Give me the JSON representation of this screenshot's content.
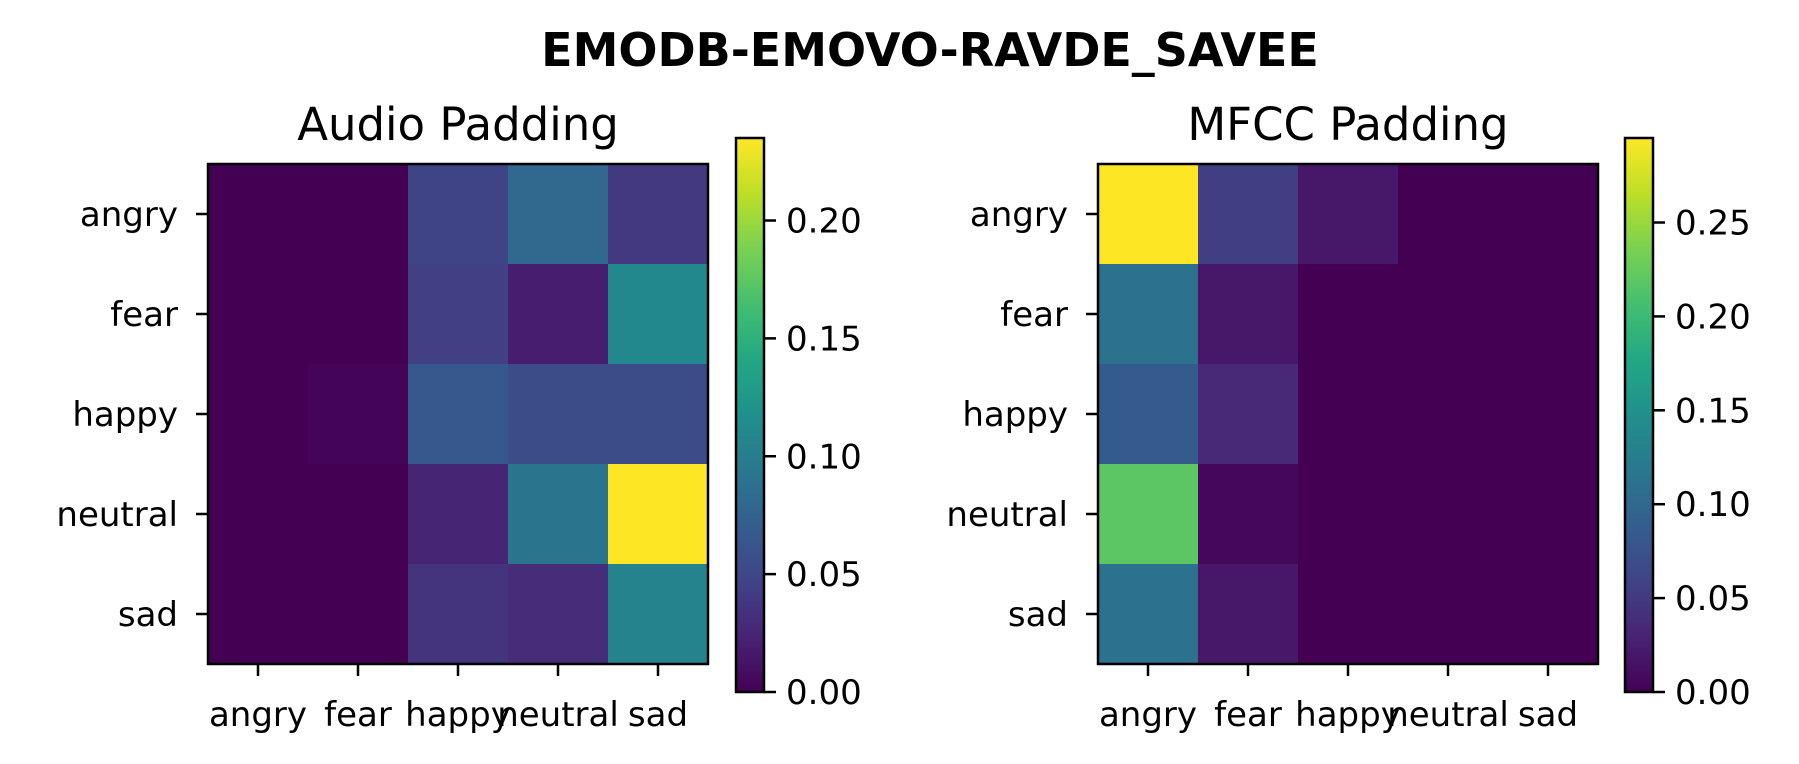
{
  "chart_data": [
    {
      "type": "heatmap",
      "suptitle": "EMODB-EMOVO-RAVDE_SAVEE",
      "title": "Audio Padding",
      "xlabels": [
        "angry",
        "fear",
        "happy",
        "neutral",
        "sad"
      ],
      "ylabels": [
        "angry",
        "fear",
        "happy",
        "neutral",
        "sad"
      ],
      "values": [
        [
          0.0,
          0.0,
          0.048,
          0.08,
          0.04
        ],
        [
          0.0,
          0.0,
          0.045,
          0.02,
          0.11
        ],
        [
          0.0,
          0.002,
          0.065,
          0.055,
          0.055
        ],
        [
          0.0,
          0.0,
          0.025,
          0.09,
          0.235
        ],
        [
          0.0,
          0.0,
          0.035,
          0.03,
          0.105
        ]
      ],
      "colorbar": {
        "min": 0.0,
        "max": 0.235,
        "ticks": [
          "0.00",
          "0.05",
          "0.10",
          "0.15",
          "0.20"
        ],
        "tick_values": [
          0.0,
          0.05,
          0.1,
          0.15,
          0.2
        ]
      },
      "colormap": "viridis"
    },
    {
      "type": "heatmap",
      "title": "MFCC Padding",
      "xlabels": [
        "angry",
        "fear",
        "happy",
        "neutral",
        "sad"
      ],
      "ylabels": [
        "angry",
        "fear",
        "happy",
        "neutral",
        "sad"
      ],
      "values": [
        [
          0.295,
          0.055,
          0.02,
          0.0,
          0.0
        ],
        [
          0.11,
          0.02,
          0.0,
          0.0,
          0.0
        ],
        [
          0.085,
          0.035,
          0.0,
          0.0,
          0.0
        ],
        [
          0.22,
          0.005,
          0.0,
          0.0,
          0.0
        ],
        [
          0.11,
          0.02,
          0.0,
          0.0,
          0.0
        ]
      ],
      "colorbar": {
        "min": 0.0,
        "max": 0.295,
        "ticks": [
          "0.00",
          "0.05",
          "0.10",
          "0.15",
          "0.20",
          "0.25"
        ],
        "tick_values": [
          0.0,
          0.05,
          0.1,
          0.15,
          0.2,
          0.25
        ]
      },
      "colormap": "viridis"
    }
  ]
}
